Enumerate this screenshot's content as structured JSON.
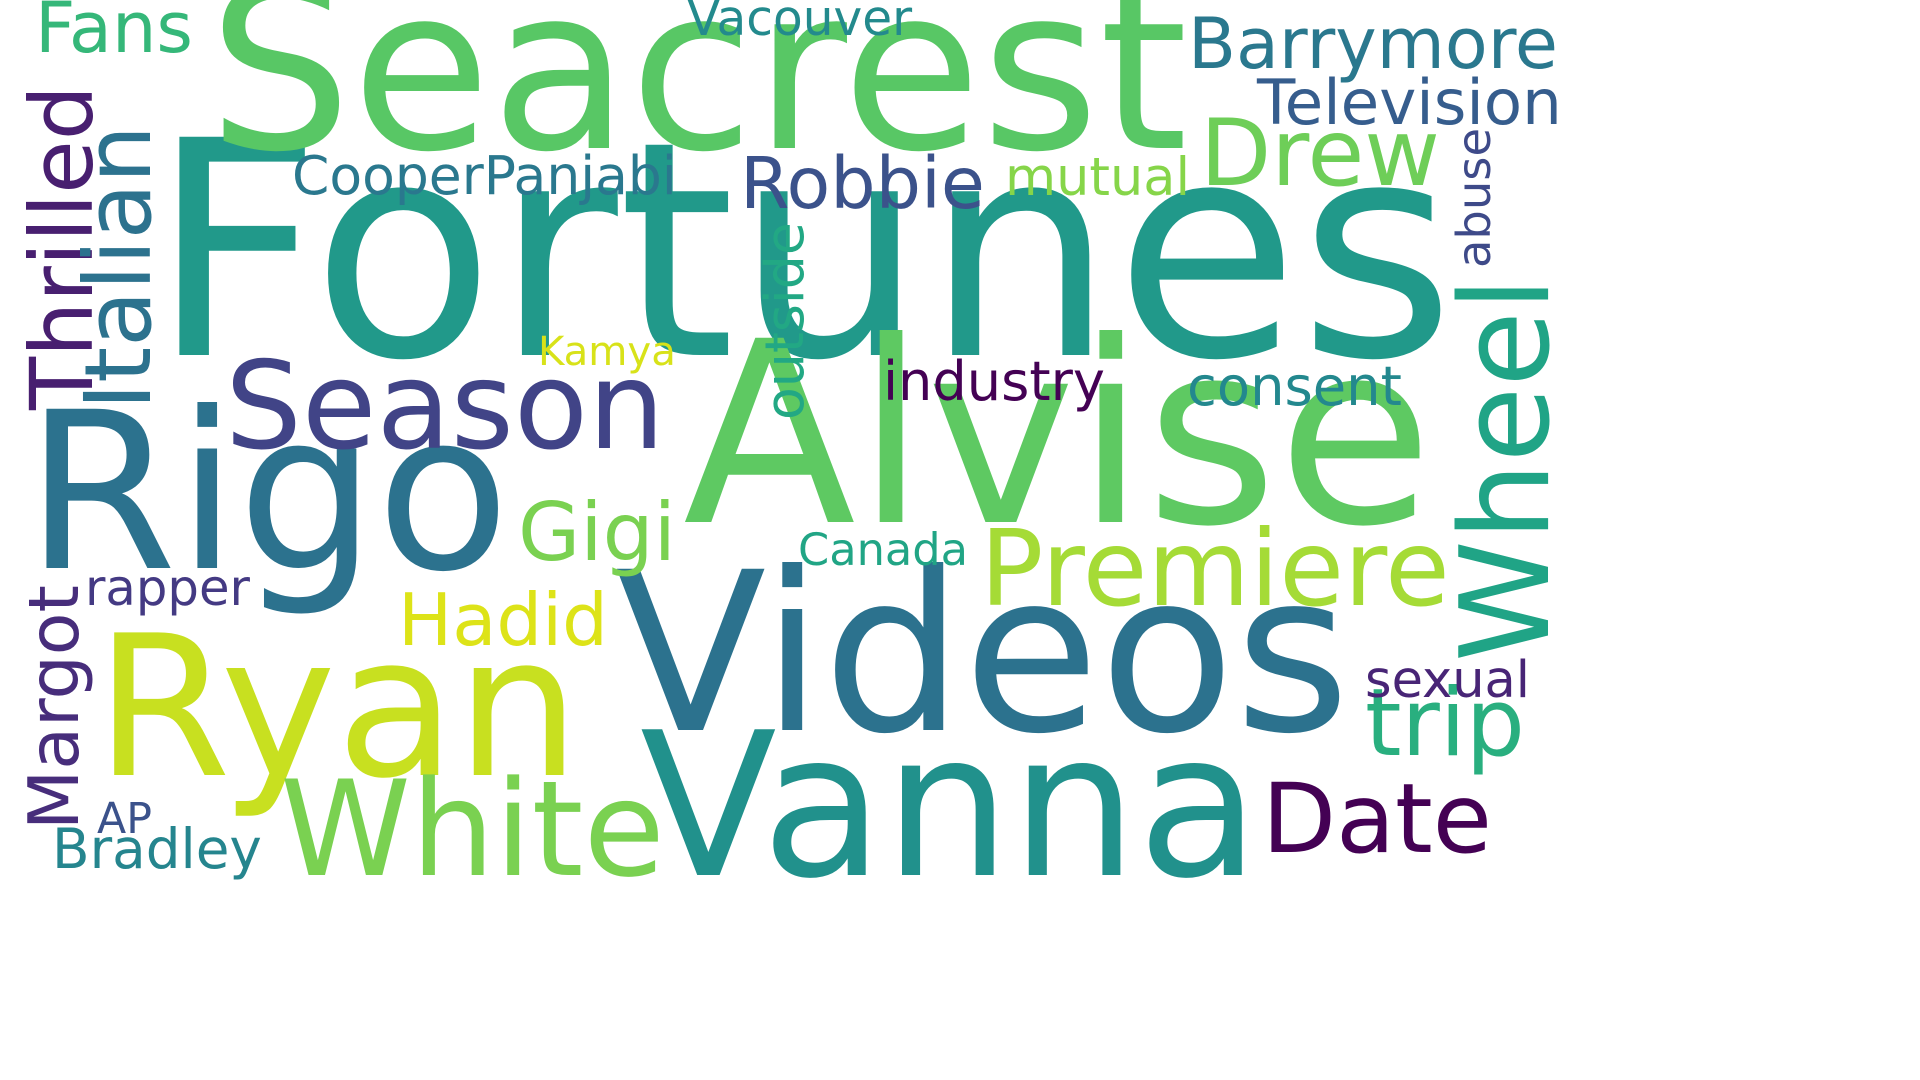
{
  "palette": "viridis",
  "background_color": "#ffffff",
  "words": [
    {
      "id": "fortunes",
      "text": "Fortunes",
      "color": "#21998a",
      "vertical": false
    },
    {
      "id": "seacrest",
      "text": "Seacrest",
      "color": "#58c765",
      "vertical": false
    },
    {
      "id": "alvise",
      "text": "Alvise",
      "color": "#5ec962",
      "vertical": false
    },
    {
      "id": "rigo",
      "text": "Rigo",
      "color": "#2c728e",
      "vertical": false
    },
    {
      "id": "ryan",
      "text": "Ryan",
      "color": "#c8e020",
      "vertical": false
    },
    {
      "id": "videos",
      "text": "Videos",
      "color": "#2c728e",
      "vertical": false
    },
    {
      "id": "vanna",
      "text": "Vanna",
      "color": "#21918c",
      "vertical": false
    },
    {
      "id": "white",
      "text": "White",
      "color": "#7ad151",
      "vertical": false
    },
    {
      "id": "season",
      "text": "Season",
      "color": "#414487",
      "vertical": false
    },
    {
      "id": "wheel",
      "text": "Wheel",
      "color": "#20a486",
      "vertical": true
    },
    {
      "id": "premiere",
      "text": "Premiere",
      "color": "#a5db36",
      "vertical": false
    },
    {
      "id": "date",
      "text": "Date",
      "color": "#440154",
      "vertical": false
    },
    {
      "id": "drew",
      "text": "Drew",
      "color": "#6ece58",
      "vertical": false
    },
    {
      "id": "barrymore",
      "text": "Barrymore",
      "color": "#2a788e",
      "vertical": false
    },
    {
      "id": "robbie",
      "text": "Robbie",
      "color": "#3b528b",
      "vertical": false
    },
    {
      "id": "thrilled",
      "text": "Thrilled",
      "color": "#481f70",
      "vertical": true
    },
    {
      "id": "italian",
      "text": "Italian",
      "color": "#2c728e",
      "vertical": true
    },
    {
      "id": "margot",
      "text": "Margot",
      "color": "#472d7b",
      "vertical": true
    },
    {
      "id": "hadid",
      "text": "Hadid",
      "color": "#dde318",
      "vertical": false
    },
    {
      "id": "gigi",
      "text": "Gigi",
      "color": "#7ad151",
      "vertical": false
    },
    {
      "id": "fans",
      "text": "Fans",
      "color": "#35b779",
      "vertical": false
    },
    {
      "id": "television",
      "text": "Television",
      "color": "#365d8d",
      "vertical": false
    },
    {
      "id": "trip",
      "text": "trip",
      "color": "#29af7f",
      "vertical": false
    },
    {
      "id": "consent",
      "text": "consent",
      "color": "#23888e",
      "vertical": false
    },
    {
      "id": "cooperpanjabi",
      "text": "CooperPanjabi",
      "color": "#2a788e",
      "vertical": false
    },
    {
      "id": "mutual",
      "text": "mutual",
      "color": "#86d549",
      "vertical": false
    },
    {
      "id": "outside",
      "text": "outside",
      "color": "#22a884",
      "vertical": true
    },
    {
      "id": "abuse",
      "text": "abuse",
      "color": "#3e4a89",
      "vertical": true
    },
    {
      "id": "industry",
      "text": "industry",
      "color": "#440154",
      "vertical": false
    },
    {
      "id": "kamya",
      "text": "Kamya",
      "color": "#d8e219",
      "vertical": false
    },
    {
      "id": "canada",
      "text": "Canada",
      "color": "#21a585",
      "vertical": false
    },
    {
      "id": "rapper",
      "text": "rapper",
      "color": "#443a83",
      "vertical": false
    },
    {
      "id": "sexual",
      "text": "sexual",
      "color": "#482576",
      "vertical": false
    },
    {
      "id": "vacouver",
      "text": "Vacouver",
      "color": "#238a8d",
      "vertical": false
    },
    {
      "id": "ap",
      "text": "AP",
      "color": "#3b528b",
      "vertical": false
    },
    {
      "id": "bradley",
      "text": "Bradley",
      "color": "#25858e",
      "vertical": false
    }
  ]
}
